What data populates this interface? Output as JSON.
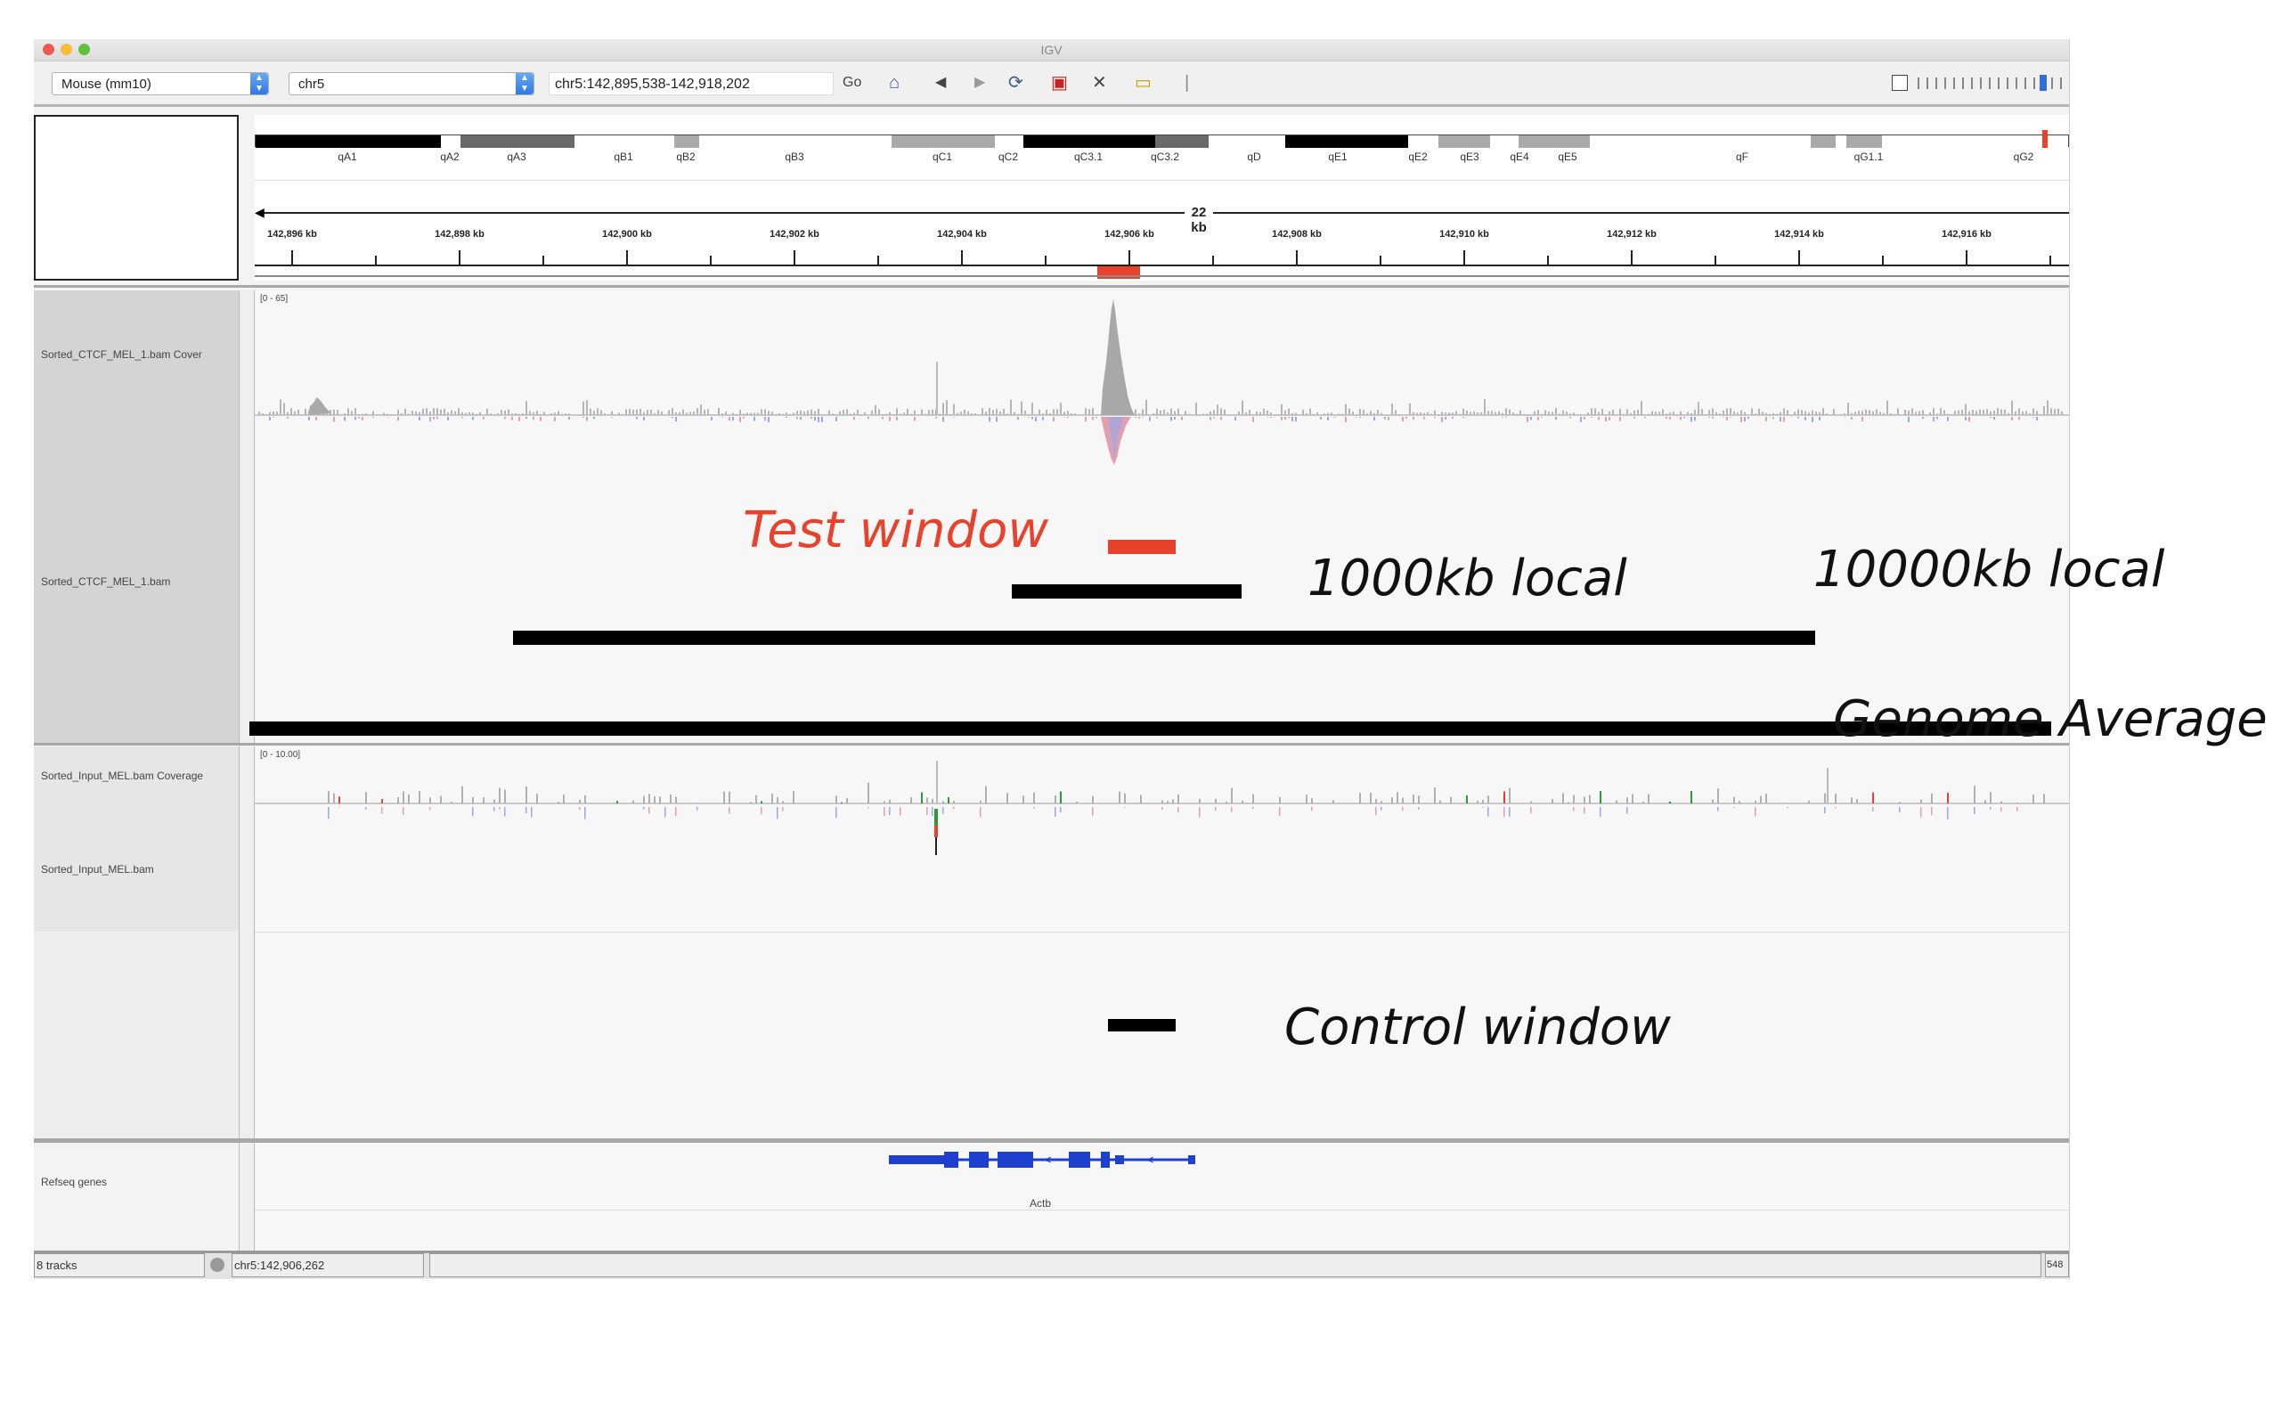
{
  "window": {
    "title": "IGV"
  },
  "toolbar": {
    "genome": "Mouse (mm10)",
    "chromosome": "chr5",
    "locus": "chr5:142,895,538-142,918,202",
    "go_label": "Go"
  },
  "ruler": {
    "bands": [
      "qA1",
      "qA2",
      "qA3",
      "qB1",
      "qB2",
      "qB3",
      "qC1",
      "qC2",
      "qC3.1",
      "qC3.2",
      "qD",
      "qE1",
      "qE2",
      "qE3",
      "qE4",
      "qE5",
      "qF",
      "qG1.1",
      "qG2"
    ],
    "span_label": "22 kb",
    "ticks": [
      "142,896 kb",
      "142,898 kb",
      "142,900 kb",
      "142,902 kb",
      "142,904 kb",
      "142,906 kb",
      "142,908 kb",
      "142,910 kb",
      "142,912 kb",
      "142,914 kb",
      "142,916 kb"
    ]
  },
  "tracks": {
    "ctcf_coverage": "Sorted_CTCF_MEL_1.bam Cover",
    "ctcf_range": "[0 - 65]",
    "ctcf_bam": "Sorted_CTCF_MEL_1.bam",
    "input_coverage": "Sorted_Input_MEL.bam Coverage",
    "input_range": "[0 - 10.00]",
    "input_bam": "Sorted_Input_MEL.bam",
    "refseq": "Refseq genes",
    "gene_name": "Actb"
  },
  "annotations": {
    "test_window": "Test window",
    "local_1000": "1000kb local",
    "local_10000": "10000kb local",
    "genome_average": "Genome Average",
    "control_window": "Control window"
  },
  "colors": {
    "test": "#e8412c",
    "gene": "#1f3fcf",
    "band_dark": "#000000"
  },
  "statusbar": {
    "tracks": "8 tracks",
    "position": "chr5:142,906,262",
    "memory": "548"
  }
}
